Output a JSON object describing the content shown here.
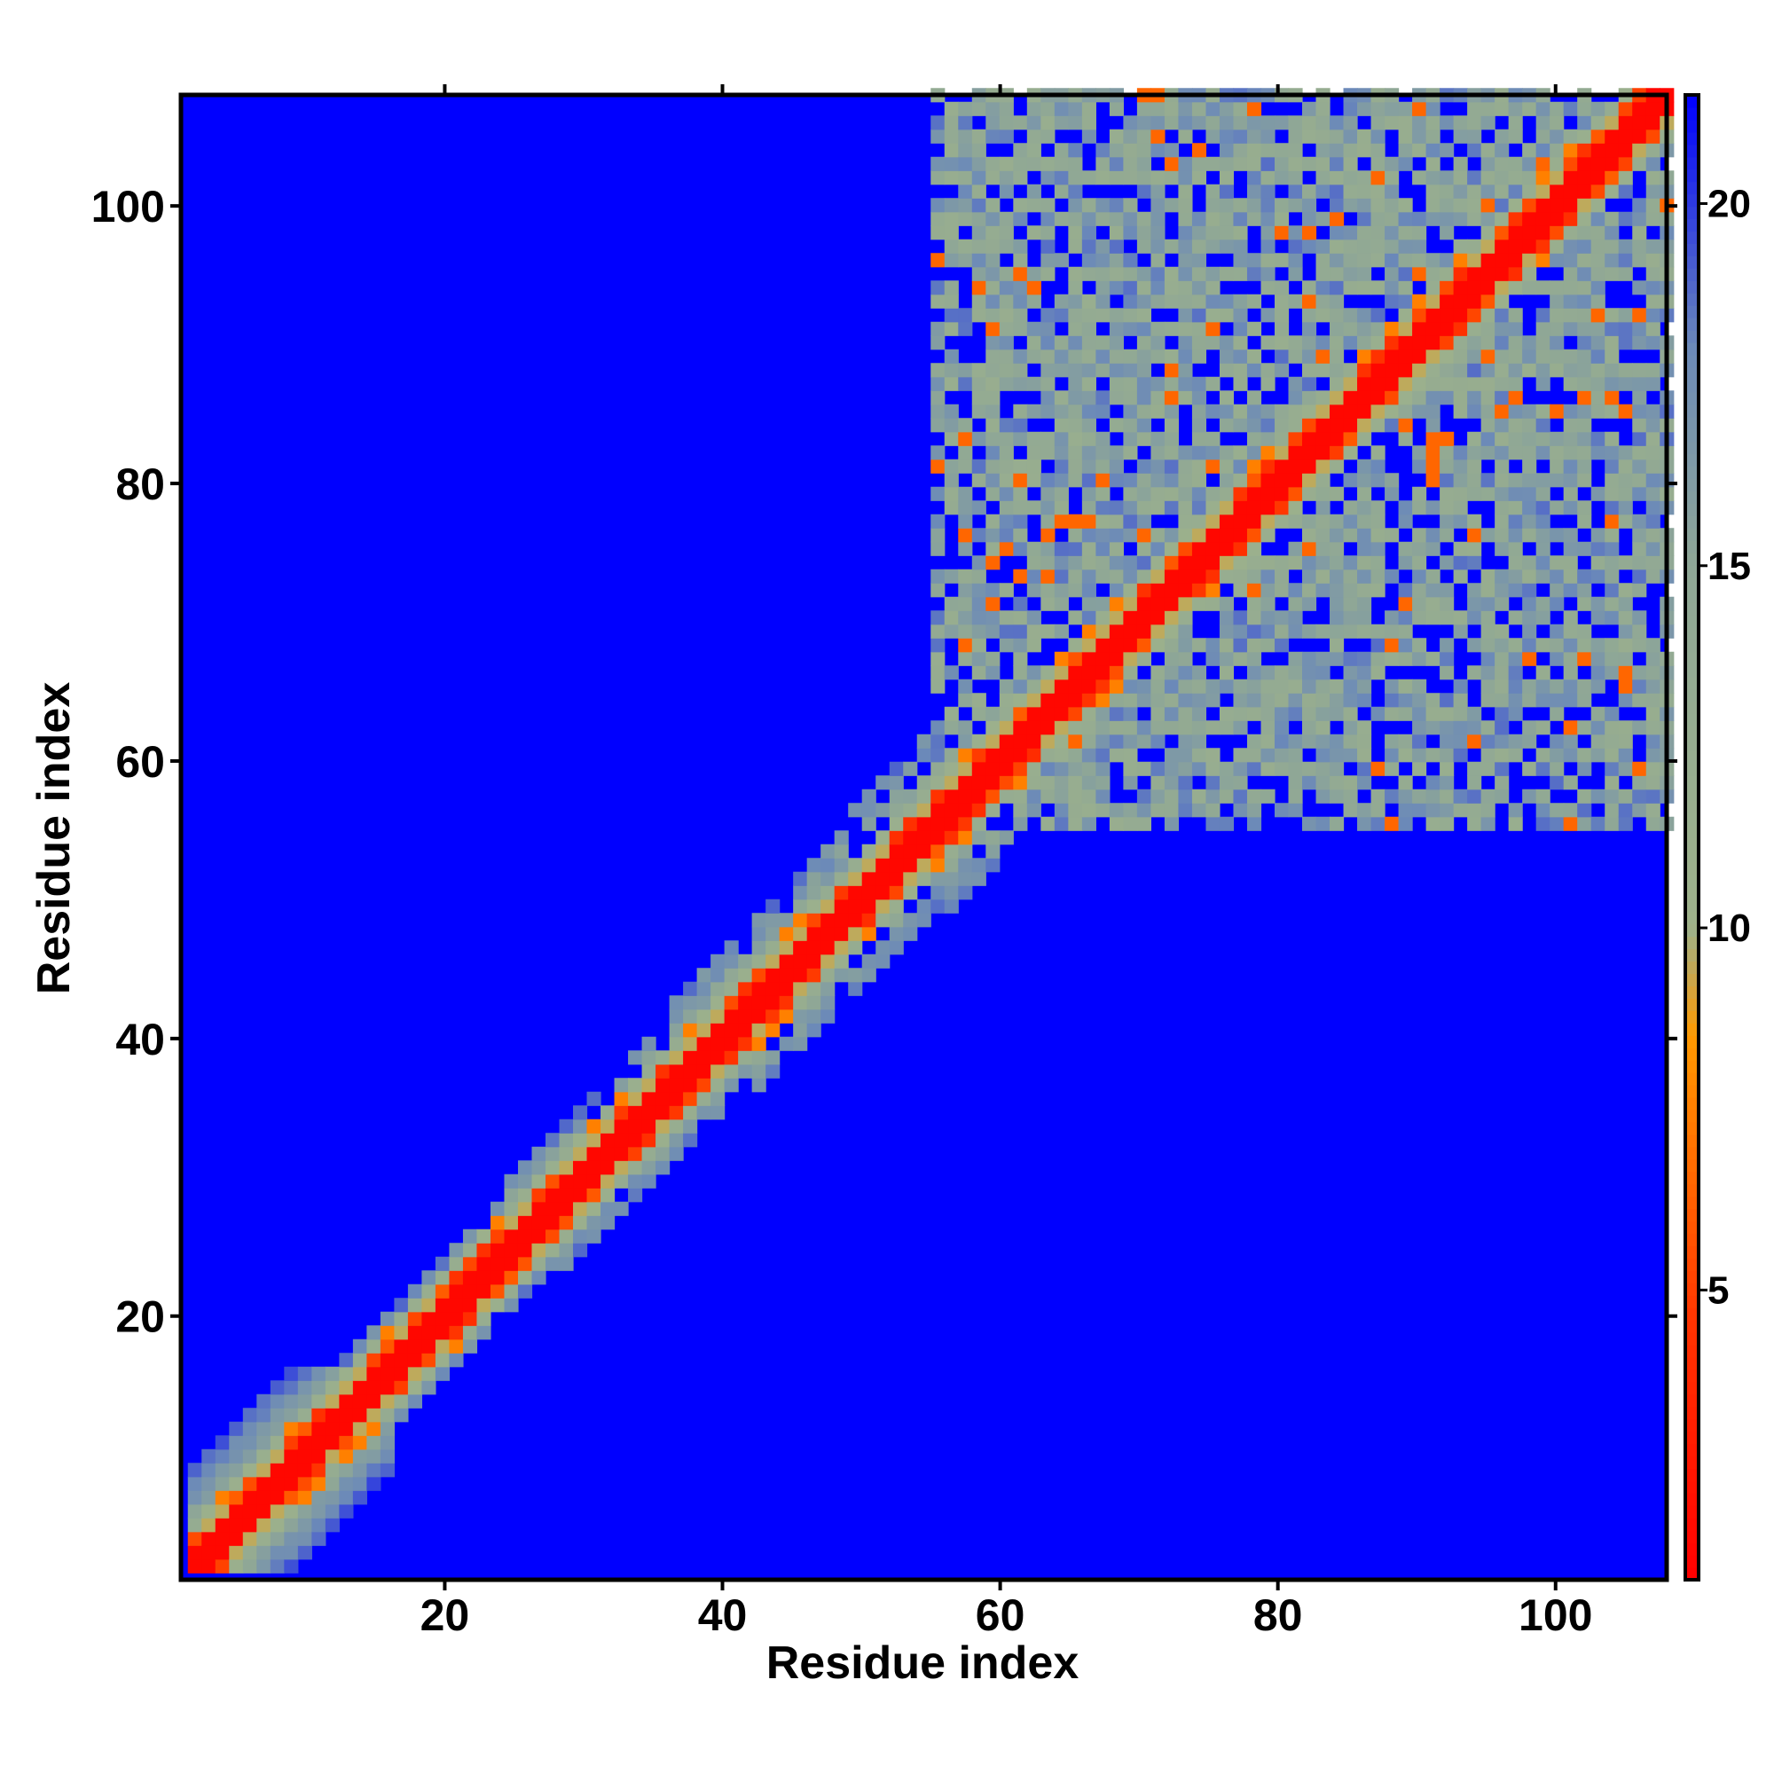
{
  "chart_data": {
    "type": "heatmap",
    "title": "",
    "xlabel": "Residue index",
    "ylabel": "Residue index",
    "xlim": [
      1,
      108
    ],
    "ylim": [
      1,
      108
    ],
    "x_ticks": [
      20,
      40,
      60,
      80,
      100
    ],
    "y_ticks": [
      20,
      40,
      60,
      80,
      100
    ],
    "x_tick_labels": [
      "20",
      "40",
      "60",
      "80",
      "100"
    ],
    "y_tick_labels": [
      "20",
      "40",
      "60",
      "80",
      "100"
    ],
    "colorbar": {
      "range": [
        1,
        21.5
      ],
      "ticks": [
        5,
        10,
        15,
        20
      ],
      "tick_labels": [
        "5",
        "10",
        "15",
        "20"
      ],
      "colors": [
        {
          "value": 1,
          "color": "#ff0000"
        },
        {
          "value": 4.5,
          "color": "#ff3300"
        },
        {
          "value": 6.5,
          "color": "#ff6600"
        },
        {
          "value": 8.5,
          "color": "#ff9900"
        },
        {
          "value": 10,
          "color": "#9eb28a"
        },
        {
          "value": 15,
          "color": "#8fa796"
        },
        {
          "value": 18,
          "color": "#6c8ab8"
        },
        {
          "value": 21.5,
          "color": "#0000ff"
        }
      ]
    },
    "background_value": 21.5,
    "background_color": "#0000ff",
    "cells_note": ""
  }
}
